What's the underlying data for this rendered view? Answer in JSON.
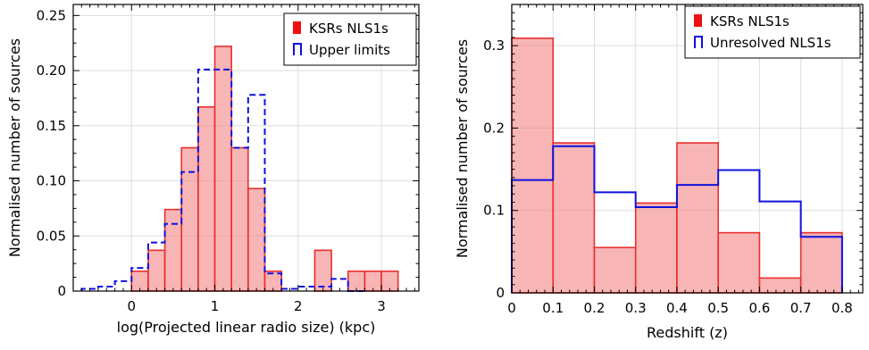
{
  "chart_data": [
    {
      "type": "bar",
      "xlabel": "log(Projected linear radio size) (kpc)",
      "ylabel": "Normalised number of sources",
      "xlim": [
        -0.7,
        3.45
      ],
      "ylim": [
        0,
        0.26
      ],
      "xticks": [
        "0",
        "1",
        "2",
        "3"
      ],
      "yticks": [
        "0",
        "0.05",
        "0.10",
        "0.15",
        "0.20",
        "0.25"
      ],
      "legend_position": "top-right",
      "series": [
        {
          "name": "KSRs NLS1s",
          "style": "filled",
          "color": "#f28e8e",
          "edge_color": "#e83030",
          "bins": [
            {
              "x0": 0.0,
              "x1": 0.2,
              "y": 0.018
            },
            {
              "x0": 0.2,
              "x1": 0.4,
              "y": 0.037
            },
            {
              "x0": 0.4,
              "x1": 0.6,
              "y": 0.074
            },
            {
              "x0": 0.6,
              "x1": 0.8,
              "y": 0.13
            },
            {
              "x0": 0.8,
              "x1": 1.0,
              "y": 0.167
            },
            {
              "x0": 1.0,
              "x1": 1.2,
              "y": 0.222
            },
            {
              "x0": 1.2,
              "x1": 1.4,
              "y": 0.13
            },
            {
              "x0": 1.4,
              "x1": 1.6,
              "y": 0.093
            },
            {
              "x0": 1.6,
              "x1": 1.8,
              "y": 0.018
            },
            {
              "x0": 2.2,
              "x1": 2.4,
              "y": 0.037
            },
            {
              "x0": 2.6,
              "x1": 2.8,
              "y": 0.018
            },
            {
              "x0": 2.8,
              "x1": 3.0,
              "y": 0.018
            },
            {
              "x0": 3.0,
              "x1": 3.2,
              "y": 0.018
            }
          ]
        },
        {
          "name": "Upper limits",
          "style": "dashed-step",
          "color": "#1010dd",
          "steps": [
            {
              "x0": -0.6,
              "x1": -0.4,
              "y": 0.002
            },
            {
              "x0": -0.4,
              "x1": -0.2,
              "y": 0.004
            },
            {
              "x0": -0.2,
              "x1": 0.0,
              "y": 0.009
            },
            {
              "x0": 0.0,
              "x1": 0.2,
              "y": 0.021
            },
            {
              "x0": 0.2,
              "x1": 0.4,
              "y": 0.044
            },
            {
              "x0": 0.4,
              "x1": 0.6,
              "y": 0.061
            },
            {
              "x0": 0.6,
              "x1": 0.8,
              "y": 0.108
            },
            {
              "x0": 0.8,
              "x1": 1.2,
              "y": 0.201
            },
            {
              "x0": 1.2,
              "x1": 1.4,
              "y": 0.13
            },
            {
              "x0": 1.4,
              "x1": 1.6,
              "y": 0.178
            },
            {
              "x0": 1.6,
              "x1": 1.8,
              "y": 0.016
            },
            {
              "x0": 1.8,
              "x1": 2.0,
              "y": 0.002
            },
            {
              "x0": 2.0,
              "x1": 2.4,
              "y": 0.004
            },
            {
              "x0": 2.4,
              "x1": 2.6,
              "y": 0.011
            },
            {
              "x0": 2.6,
              "x1": 2.8,
              "y": 0.0
            }
          ]
        }
      ]
    },
    {
      "type": "bar",
      "xlabel": "Redshift (z)",
      "ylabel": "Normalised number of sources",
      "xlim": [
        0,
        0.85
      ],
      "ylim": [
        0,
        0.35
      ],
      "xticks": [
        "0",
        "0.1",
        "0.2",
        "0.3",
        "0.4",
        "0.5",
        "0.6",
        "0.7",
        "0.8"
      ],
      "yticks": [
        "0",
        "0.1",
        "0.2",
        "0.3"
      ],
      "legend_position": "top-right",
      "series": [
        {
          "name": "KSRs NLS1s",
          "style": "filled",
          "color": "#f28e8e",
          "edge_color": "#e83030",
          "bins": [
            {
              "x0": 0.0,
              "x1": 0.1,
              "y": 0.309
            },
            {
              "x0": 0.1,
              "x1": 0.2,
              "y": 0.182
            },
            {
              "x0": 0.2,
              "x1": 0.3,
              "y": 0.055
            },
            {
              "x0": 0.3,
              "x1": 0.4,
              "y": 0.109
            },
            {
              "x0": 0.4,
              "x1": 0.5,
              "y": 0.182
            },
            {
              "x0": 0.5,
              "x1": 0.6,
              "y": 0.073
            },
            {
              "x0": 0.6,
              "x1": 0.7,
              "y": 0.018
            },
            {
              "x0": 0.7,
              "x1": 0.8,
              "y": 0.073
            }
          ]
        },
        {
          "name": "Unresolved NLS1s",
          "style": "step",
          "color": "#1010dd",
          "steps": [
            {
              "x0": 0.0,
              "x1": 0.1,
              "y": 0.137
            },
            {
              "x0": 0.1,
              "x1": 0.2,
              "y": 0.178
            },
            {
              "x0": 0.2,
              "x1": 0.3,
              "y": 0.122
            },
            {
              "x0": 0.3,
              "x1": 0.4,
              "y": 0.104
            },
            {
              "x0": 0.4,
              "x1": 0.5,
              "y": 0.131
            },
            {
              "x0": 0.5,
              "x1": 0.6,
              "y": 0.149
            },
            {
              "x0": 0.6,
              "x1": 0.7,
              "y": 0.111
            },
            {
              "x0": 0.7,
              "x1": 0.8,
              "y": 0.068
            }
          ]
        }
      ]
    }
  ]
}
